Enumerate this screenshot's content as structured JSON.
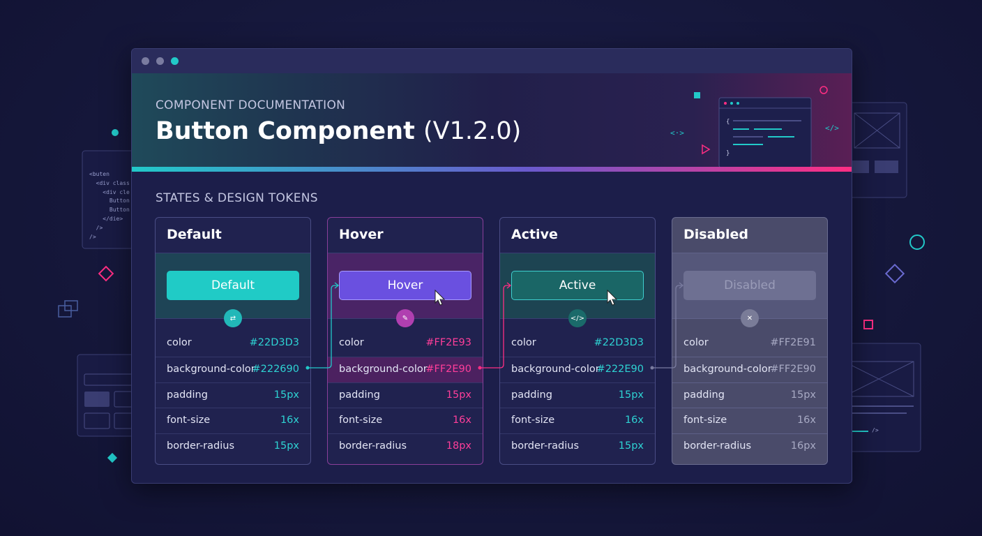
{
  "header": {
    "eyebrow": "COMPONENT DOCUMENTATION",
    "title": "Button Component",
    "version": "(V1.2.0)"
  },
  "section_title": "STATES & DESIGN TOKENS",
  "states": [
    {
      "name": "Default",
      "button": "Default",
      "tokens": [
        {
          "name": "color",
          "value": "#22D3D3"
        },
        {
          "name": "background-color",
          "value": "#222690"
        },
        {
          "name": "padding",
          "value": "15px"
        },
        {
          "name": "font-size",
          "value": "16x"
        },
        {
          "name": "border-radius",
          "value": "15px"
        }
      ]
    },
    {
      "name": "Hover",
      "button": "Hover",
      "tokens": [
        {
          "name": "color",
          "value": "#FF2E93"
        },
        {
          "name": "background-color",
          "value": "#FF2E90"
        },
        {
          "name": "padding",
          "value": "15px"
        },
        {
          "name": "font-size",
          "value": "16x"
        },
        {
          "name": "border-radius",
          "value": "18px"
        }
      ]
    },
    {
      "name": "Active",
      "button": "Active",
      "tokens": [
        {
          "name": "color",
          "value": "#22D3D3"
        },
        {
          "name": "background-color",
          "value": "#222E90"
        },
        {
          "name": "padding",
          "value": "15px"
        },
        {
          "name": "font-size",
          "value": "16x"
        },
        {
          "name": "border-radius",
          "value": "15px"
        }
      ]
    },
    {
      "name": "Disabled",
      "button": "Disabled",
      "tokens": [
        {
          "name": "color",
          "value": "#FF2E91"
        },
        {
          "name": "background-color",
          "value": "#FF2E90"
        },
        {
          "name": "padding",
          "value": "15px"
        },
        {
          "name": "font-size",
          "value": "16x"
        },
        {
          "name": "border-radius",
          "value": "16px"
        }
      ]
    }
  ],
  "state_icons": [
    "⇄",
    "✎",
    "</>",
    "✕"
  ],
  "side_code": [
    "<buten",
    "  <div class",
    "    <div cle",
    "      Button",
    "      Button",
    "    </die>",
    "  />",
    "/>"
  ],
  "header_code": [
    "{",
    "}"
  ],
  "decor_glyphs": [
    "<·>",
    "</>",
    "/>"
  ]
}
